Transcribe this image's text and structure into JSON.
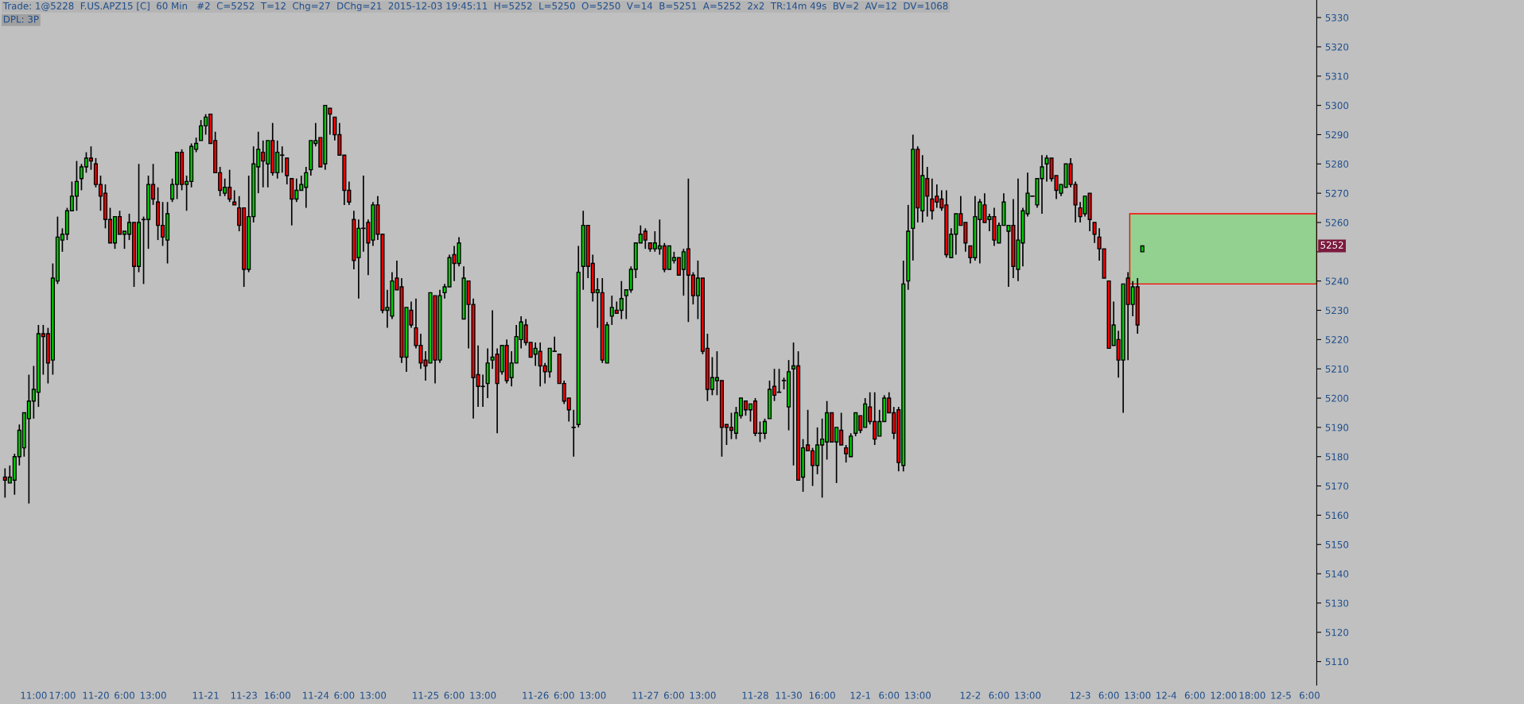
{
  "chart_data": {
    "type": "candlestick",
    "title": "Trade: 1@5228  F.US.APZ15 [C]  60 Min   #2  C=5252  T=12  Chg=27  DChg=21  2015-12-03 19:45:11  H=5252  L=5250  O=5250  V=14  B=5251  A=5252  2x2  TR:14m 49s  BV=2  AV=12  DV=1068",
    "subtitle": "DPL: 3P",
    "categories": [
      null,
      null,
      null,
      null,
      null,
      null,
      "11:00",
      null,
      null,
      null,
      null,
      null,
      "17:00",
      null,
      null,
      null,
      null,
      null,
      null,
      "11-20",
      null,
      null,
      null,
      null,
      null,
      "6:00",
      null,
      null,
      null,
      null,
      null,
      "13:00",
      null,
      null,
      null,
      null,
      null,
      null,
      null,
      null,
      null,
      null,
      "11-21",
      null,
      null,
      null,
      null,
      null,
      null,
      null,
      "11-23",
      null,
      null,
      null,
      null,
      null,
      null,
      "16:00",
      null,
      null,
      null,
      null,
      null,
      null,
      null,
      "11-24",
      null,
      null,
      null,
      null,
      null,
      "6:00",
      null,
      null,
      null,
      null,
      null,
      "13:00",
      null,
      null,
      null,
      null,
      null,
      null,
      null,
      null,
      null,
      null,
      "11-25",
      null,
      null,
      null,
      null,
      null,
      "6:00",
      null,
      null,
      null,
      null,
      null,
      "13:00",
      null,
      null,
      null,
      null,
      null,
      null,
      null,
      null,
      null,
      null,
      "11-26",
      null,
      null,
      null,
      null,
      null,
      "6:00",
      null,
      null,
      null,
      null,
      null,
      "13:00",
      null,
      null,
      null,
      null,
      null,
      null,
      null,
      null,
      null,
      null,
      "11-27",
      null,
      null,
      null,
      null,
      null,
      "6:00",
      null,
      null,
      null,
      null,
      null,
      "13:00",
      null,
      null,
      null,
      null,
      null,
      null,
      null,
      null,
      null,
      null,
      "11-28",
      null,
      null,
      null,
      null,
      null,
      null,
      "11-30",
      null,
      null,
      null,
      null,
      null,
      null,
      "16:00",
      null,
      null,
      null,
      null,
      null,
      null,
      null,
      "12-1",
      null,
      null,
      null,
      null,
      null,
      "6:00",
      null,
      null,
      null,
      null,
      null,
      "13:00",
      null,
      null,
      null,
      null,
      null,
      null,
      null,
      null,
      null,
      null,
      "12-2",
      null,
      null,
      null,
      null,
      null,
      "6:00",
      null,
      null,
      null,
      null,
      null,
      "13:00",
      null,
      null,
      null,
      null,
      null,
      null,
      null,
      null,
      null,
      null,
      "12-3",
      null,
      null,
      null,
      null,
      null,
      "6:00",
      null,
      null,
      null,
      null,
      null,
      "13:00",
      null,
      null,
      null,
      null,
      null,
      "12-4",
      null,
      null,
      null,
      null,
      null,
      "6:00",
      null,
      null,
      null,
      null,
      null,
      "12:00",
      null,
      null,
      null,
      null,
      null,
      "18:00",
      null,
      null,
      null,
      null,
      null,
      "12-5",
      null,
      null,
      null,
      null,
      null,
      "6:00",
      null
    ],
    "ohlc": [
      [
        5173,
        5176,
        5166,
        5172
      ],
      [
        5171,
        5177,
        5171,
        5173
      ],
      [
        5172,
        5181,
        5167,
        5180
      ],
      [
        5180,
        5191,
        5177,
        5189
      ],
      [
        5183,
        5195,
        5180,
        5195
      ],
      [
        5193,
        5208,
        5164,
        5199
      ],
      [
        5199,
        5211,
        5193,
        5203
      ],
      [
        5202,
        5225,
        5197,
        5222
      ],
      [
        5222,
        5225,
        5208,
        5221
      ],
      [
        5222,
        5224,
        5205,
        5212
      ],
      [
        5213,
        5246,
        5208,
        5241
      ],
      [
        5240,
        5262,
        5239,
        5255
      ],
      [
        5254,
        5258,
        5250,
        5256
      ],
      [
        5256,
        5265,
        5254,
        5264
      ],
      [
        5264,
        5274,
        5264,
        5269
      ],
      [
        5269,
        5281,
        5264,
        5274
      ],
      [
        5275,
        5280,
        5271,
        5279
      ],
      [
        5279,
        5284,
        5277,
        5282
      ],
      [
        5282,
        5286,
        5278,
        5281
      ],
      [
        5280,
        5282,
        5272,
        5273
      ],
      [
        5273,
        5276,
        5264,
        5269
      ],
      [
        5270,
        5273,
        5258,
        5261
      ],
      [
        5261,
        5265,
        5253,
        5253
      ],
      [
        5253,
        5262,
        5251,
        5262
      ],
      [
        5262,
        5264,
        5256,
        5256
      ],
      [
        5256,
        5257,
        5251,
        5257
      ],
      [
        5256,
        5263,
        5254,
        5260
      ],
      [
        5260,
        5260,
        5238,
        5245
      ],
      [
        5245,
        5280,
        5243,
        5260
      ],
      [
        5261,
        5262,
        5239,
        5261
      ],
      [
        5261,
        5276,
        5251,
        5273
      ],
      [
        5273,
        5280,
        5266,
        5268
      ],
      [
        5267,
        5272,
        5254,
        5259
      ],
      [
        5259,
        5267,
        5252,
        5255
      ],
      [
        5254,
        5267,
        5246,
        5263
      ],
      [
        5268,
        5275,
        5267,
        5273
      ],
      [
        5273,
        5284,
        5268,
        5284
      ],
      [
        5284,
        5285,
        5271,
        5273
      ],
      [
        5273,
        5276,
        5264,
        5274
      ],
      [
        5274,
        5287,
        5272,
        5286
      ],
      [
        5285,
        5289,
        5284,
        5287
      ],
      [
        5288,
        5295,
        5288,
        5293
      ],
      [
        5293,
        5297,
        5290,
        5296
      ],
      [
        5297,
        5297,
        5287,
        5287
      ],
      [
        5288,
        5291,
        5277,
        5277
      ],
      [
        5277,
        5279,
        5269,
        5271
      ],
      [
        5270,
        5275,
        5269,
        5272
      ],
      [
        5272,
        5278,
        5267,
        5268
      ],
      [
        5267,
        5271,
        5266,
        5266
      ],
      [
        5265,
        5269,
        5257,
        5259
      ],
      [
        5265,
        5265,
        5238,
        5244
      ],
      [
        5244,
        5276,
        5243,
        5262
      ],
      [
        5262,
        5286,
        5260,
        5280
      ],
      [
        5279,
        5291,
        5270,
        5285
      ],
      [
        5284,
        5288,
        5272,
        5281
      ],
      [
        5280,
        5288,
        5272,
        5288
      ],
      [
        5288,
        5294,
        5276,
        5277
      ],
      [
        5277,
        5288,
        5275,
        5284
      ],
      [
        5283,
        5286,
        5277,
        5283
      ],
      [
        5282,
        5282,
        5273,
        5276
      ],
      [
        5275,
        5275,
        5259,
        5268
      ],
      [
        5268,
        5275,
        5267,
        5271
      ],
      [
        5271,
        5276,
        5271,
        5273
      ],
      [
        5272,
        5279,
        5265,
        5277
      ],
      [
        5278,
        5288,
        5276,
        5288
      ],
      [
        5287,
        5294,
        5286,
        5288
      ],
      [
        5289,
        5289,
        5279,
        5279
      ],
      [
        5280,
        5300,
        5278,
        5300
      ],
      [
        5299,
        5299,
        5290,
        5297
      ],
      [
        5296,
        5296,
        5288,
        5290
      ],
      [
        5290,
        5294,
        5283,
        5283
      ],
      [
        5283,
        5283,
        5266,
        5271
      ],
      [
        5271,
        5274,
        5266,
        5267
      ],
      [
        5261,
        5264,
        5244,
        5247
      ],
      [
        5248,
        5261,
        5234,
        5258
      ],
      [
        5258,
        5276,
        5250,
        5258
      ],
      [
        5260,
        5261,
        5242,
        5253
      ],
      [
        5254,
        5267,
        5252,
        5266
      ],
      [
        5266,
        5269,
        5254,
        5256
      ],
      [
        5256,
        5256,
        5229,
        5230
      ],
      [
        5230,
        5237,
        5224,
        5231
      ],
      [
        5228,
        5243,
        5227,
        5240
      ],
      [
        5241,
        5247,
        5237,
        5237
      ],
      [
        5238,
        5241,
        5212,
        5214
      ],
      [
        5214,
        5231,
        5209,
        5231
      ],
      [
        5230,
        5233,
        5224,
        5225
      ],
      [
        5224,
        5234,
        5217,
        5218
      ],
      [
        5218,
        5222,
        5210,
        5212
      ],
      [
        5213,
        5216,
        5206,
        5211
      ],
      [
        5212,
        5236,
        5212,
        5236
      ],
      [
        5235,
        5235,
        5205,
        5213
      ],
      [
        5213,
        5237,
        5212,
        5235
      ],
      [
        5236,
        5239,
        5234,
        5238
      ],
      [
        5238,
        5249,
        5238,
        5248
      ],
      [
        5249,
        5252,
        5240,
        5246
      ],
      [
        5246,
        5255,
        5245,
        5253
      ],
      [
        5227,
        5245,
        5227,
        5241
      ],
      [
        5240,
        5240,
        5217,
        5232
      ],
      [
        5232,
        5234,
        5193,
        5207
      ],
      [
        5208,
        5218,
        5197,
        5204
      ],
      [
        5204,
        5208,
        5197,
        5204
      ],
      [
        5205,
        5217,
        5200,
        5212
      ],
      [
        5213,
        5230,
        5210,
        5214
      ],
      [
        5215,
        5217,
        5188,
        5205
      ],
      [
        5209,
        5218,
        5208,
        5218
      ],
      [
        5218,
        5220,
        5205,
        5206
      ],
      [
        5207,
        5216,
        5204,
        5212
      ],
      [
        5212,
        5225,
        5212,
        5221
      ],
      [
        5220,
        5228,
        5217,
        5226
      ],
      [
        5225,
        5227,
        5218,
        5219
      ],
      [
        5219,
        5219,
        5214,
        5214
      ],
      [
        5215,
        5219,
        5211,
        5217
      ],
      [
        5216,
        5219,
        5204,
        5211
      ],
      [
        5211,
        5212,
        5205,
        5209
      ],
      [
        5209,
        5217,
        5207,
        5217
      ],
      [
        5216,
        5221,
        5216,
        5216
      ],
      [
        5215,
        5215,
        5205,
        5205
      ],
      [
        5205,
        5206,
        5198,
        5199
      ],
      [
        5200,
        5200,
        5192,
        5196
      ],
      [
        5190,
        5196,
        5180,
        5190
      ],
      [
        5191,
        5252,
        5190,
        5243
      ],
      [
        5245,
        5264,
        5237,
        5259
      ],
      [
        5259,
        5259,
        5241,
        5245
      ],
      [
        5246,
        5249,
        5233,
        5236
      ],
      [
        5236,
        5241,
        5224,
        5237
      ],
      [
        5236,
        5241,
        5212,
        5213
      ],
      [
        5212,
        5226,
        5212,
        5225
      ],
      [
        5228,
        5235,
        5225,
        5231
      ],
      [
        5230,
        5233,
        5229,
        5229
      ],
      [
        5230,
        5240,
        5227,
        5234
      ],
      [
        5235,
        5237,
        5227,
        5237
      ],
      [
        5237,
        5245,
        5236,
        5244
      ],
      [
        5244,
        5253,
        5241,
        5253
      ],
      [
        5253,
        5259,
        5253,
        5256
      ],
      [
        5257,
        5258,
        5251,
        5254
      ],
      [
        5253,
        5253,
        5250,
        5251
      ],
      [
        5251,
        5257,
        5250,
        5253
      ],
      [
        5251,
        5261,
        5249,
        5252
      ],
      [
        5252,
        5253,
        5243,
        5244
      ],
      [
        5244,
        5252,
        5244,
        5252
      ],
      [
        5247,
        5250,
        5246,
        5248
      ],
      [
        5248,
        5248,
        5242,
        5242
      ],
      [
        5244,
        5251,
        5235,
        5250
      ],
      [
        5251,
        5275,
        5226,
        5242
      ],
      [
        5242,
        5243,
        5232,
        5235
      ],
      [
        5235,
        5247,
        5227,
        5241
      ],
      [
        5241,
        5241,
        5215,
        5216
      ],
      [
        5217,
        5222,
        5199,
        5203
      ],
      [
        5203,
        5214,
        5201,
        5207
      ],
      [
        5206,
        5216,
        5201,
        5207
      ],
      [
        5206,
        5206,
        5180,
        5190
      ],
      [
        5191,
        5191,
        5184,
        5190
      ],
      [
        5190,
        5195,
        5186,
        5189
      ],
      [
        5188,
        5197,
        5186,
        5195
      ],
      [
        5194,
        5200,
        5193,
        5200
      ],
      [
        5199,
        5199,
        5194,
        5196
      ],
      [
        5196,
        5198,
        5192,
        5198
      ],
      [
        5199,
        5200,
        5187,
        5188
      ],
      [
        5188,
        5192,
        5185,
        5188
      ],
      [
        5188,
        5193,
        5186,
        5192
      ],
      [
        5193,
        5206,
        5193,
        5203
      ],
      [
        5204,
        5210,
        5199,
        5201
      ],
      [
        5202,
        5210,
        5202,
        5202
      ],
      [
        5206,
        5207,
        5203,
        5206
      ],
      [
        5197,
        5213,
        5189,
        5209
      ],
      [
        5210,
        5219,
        5177,
        5211
      ],
      [
        5211,
        5216,
        5172,
        5172
      ],
      [
        5173,
        5186,
        5168,
        5183
      ],
      [
        5184,
        5196,
        5182,
        5182
      ],
      [
        5182,
        5183,
        5170,
        5177
      ],
      [
        5177,
        5190,
        5174,
        5184
      ],
      [
        5184,
        5193,
        5166,
        5186
      ],
      [
        5185,
        5199,
        5179,
        5195
      ],
      [
        5195,
        5195,
        5185,
        5185
      ],
      [
        5185,
        5190,
        5171,
        5190
      ],
      [
        5189,
        5195,
        5184,
        5184
      ],
      [
        5183,
        5184,
        5178,
        5181
      ],
      [
        5180,
        5188,
        5180,
        5187
      ],
      [
        5188,
        5195,
        5187,
        5195
      ],
      [
        5194,
        5194,
        5188,
        5189
      ],
      [
        5190,
        5200,
        5190,
        5198
      ],
      [
        5197,
        5202,
        5191,
        5192
      ],
      [
        5192,
        5202,
        5184,
        5186
      ],
      [
        5187,
        5196,
        5187,
        5192
      ],
      [
        5192,
        5201,
        5192,
        5200
      ],
      [
        5200,
        5202,
        5195,
        5195
      ],
      [
        5195,
        5197,
        5186,
        5188
      ],
      [
        5196,
        5197,
        5175,
        5178
      ],
      [
        5177,
        5247,
        5175,
        5239
      ],
      [
        5240,
        5266,
        5237,
        5257
      ],
      [
        5258,
        5290,
        5247,
        5285
      ],
      [
        5285,
        5286,
        5260,
        5265
      ],
      [
        5264,
        5283,
        5260,
        5276
      ],
      [
        5275,
        5279,
        5262,
        5269
      ],
      [
        5268,
        5275,
        5261,
        5264
      ],
      [
        5269,
        5273,
        5265,
        5267
      ],
      [
        5268,
        5271,
        5264,
        5265
      ],
      [
        5266,
        5271,
        5248,
        5249
      ],
      [
        5248,
        5258,
        5248,
        5256
      ],
      [
        5256,
        5263,
        5249,
        5263
      ],
      [
        5263,
        5269,
        5259,
        5259
      ],
      [
        5260,
        5260,
        5250,
        5253
      ],
      [
        5252,
        5252,
        5246,
        5248
      ],
      [
        5248,
        5269,
        5247,
        5262
      ],
      [
        5261,
        5268,
        5246,
        5267
      ],
      [
        5266,
        5270,
        5260,
        5260
      ],
      [
        5261,
        5263,
        5257,
        5262
      ],
      [
        5262,
        5265,
        5252,
        5254
      ],
      [
        5253,
        5260,
        5253,
        5259
      ],
      [
        5259,
        5270,
        5259,
        5267
      ],
      [
        5257,
        5259,
        5238,
        5259
      ],
      [
        5259,
        5268,
        5241,
        5245
      ],
      [
        5244,
        5275,
        5240,
        5254
      ],
      [
        5253,
        5265,
        5245,
        5264
      ],
      [
        5263,
        5277,
        5262,
        5270
      ],
      [
        5269,
        5269,
        5269,
        5269
      ],
      [
        5266,
        5275,
        5265,
        5275
      ],
      [
        5275,
        5283,
        5263,
        5279
      ],
      [
        5280,
        5283,
        5274,
        5282
      ],
      [
        5282,
        5282,
        5274,
        5275
      ],
      [
        5276,
        5276,
        5268,
        5271
      ],
      [
        5270,
        5273,
        5269,
        5273
      ],
      [
        5272,
        5280,
        5272,
        5280
      ],
      [
        5280,
        5282,
        5272,
        5273
      ],
      [
        5273,
        5274,
        5260,
        5266
      ],
      [
        5265,
        5267,
        5260,
        5262
      ],
      [
        5263,
        5269,
        5262,
        5269
      ],
      [
        5270,
        5270,
        5257,
        5261
      ],
      [
        5260,
        5260,
        5253,
        5256
      ],
      [
        5255,
        5258,
        5247,
        5251
      ],
      [
        5251,
        5251,
        5241,
        5241
      ],
      [
        5240,
        5240,
        5217,
        5217
      ],
      [
        5218,
        5233,
        5218,
        5225
      ],
      [
        5220,
        5223,
        5207,
        5213
      ],
      [
        5213,
        5239,
        5195,
        5239
      ],
      [
        5241,
        5243,
        5213,
        5232
      ],
      [
        5232,
        5240,
        5228,
        5238
      ],
      [
        5238,
        5241,
        5222,
        5225
      ],
      [
        5250,
        5252,
        5250,
        5252
      ],
      null,
      null,
      null,
      null,
      null,
      null,
      null,
      null,
      null,
      null,
      null,
      null,
      null,
      null,
      null,
      null,
      null,
      null,
      null,
      null,
      null,
      null,
      null,
      null,
      null,
      null,
      null,
      null,
      null,
      null,
      null,
      null,
      null,
      null,
      null,
      null
    ],
    "colors": [
      "#ff0000",
      "#00d200",
      "#00d200",
      "#00d200",
      "#00d200",
      "#00d200",
      "#00d200",
      "#00d200",
      "#ff0000",
      "#ff0000",
      "#00d200",
      "#00d200",
      "#00d200",
      "#00d200",
      "#00d200",
      "#00d200",
      "#00d200",
      "#00d200",
      "#ff0000",
      "#ff0000",
      "#ff0000",
      "#ff0000",
      "#ff0000",
      "#00d200",
      "#ff0000",
      "#00d200",
      "#00d200",
      "#ff0000",
      "#00d200",
      "#000000",
      "#00d200",
      "#ff0000",
      "#ff0000",
      "#ff0000",
      "#00d200",
      "#00d200",
      "#00d200",
      "#ff0000",
      "#00d200",
      "#00d200",
      "#00d200",
      "#00d200",
      "#00d200",
      "#ff0000",
      "#ff0000",
      "#ff0000",
      "#00d200",
      "#ff0000",
      "#ff0000",
      "#ff0000",
      "#ff0000",
      "#00d200",
      "#00d200",
      "#00d200",
      "#ff0000",
      "#00d200",
      "#ff0000",
      "#00d200",
      "#000000",
      "#ff0000",
      "#ff0000",
      "#00d200",
      "#00d200",
      "#00d200",
      "#00d200",
      "#00d200",
      "#ff0000",
      "#00d200",
      "#ff0000",
      "#ff0000",
      "#ff0000",
      "#ff0000",
      "#ff0000",
      "#ff0000",
      "#00d200",
      "#000000",
      "#ff0000",
      "#00d200",
      "#ff0000",
      "#ff0000",
      "#00d200",
      "#00d200",
      "#ff0000",
      "#ff0000",
      "#00d200",
      "#ff0000",
      "#ff0000",
      "#ff0000",
      "#ff0000",
      "#00d200",
      "#ff0000",
      "#00d200",
      "#00d200",
      "#00d200",
      "#ff0000",
      "#00d200",
      "#00d200",
      "#ff0000",
      "#ff0000",
      "#ff0000",
      "#000000",
      "#00d200",
      "#00d200",
      "#ff0000",
      "#00d200",
      "#ff0000",
      "#00d200",
      "#00d200",
      "#00d200",
      "#ff0000",
      "#ff0000",
      "#00d200",
      "#ff0000",
      "#ff0000",
      "#00d200",
      "#000000",
      "#ff0000",
      "#ff0000",
      "#ff0000",
      "#000000",
      "#00d200",
      "#00d200",
      "#ff0000",
      "#ff0000",
      "#00d200",
      "#ff0000",
      "#00d200",
      "#00d200",
      "#ff0000",
      "#00d200",
      "#00d200",
      "#00d200",
      "#00d200",
      "#00d200",
      "#ff0000",
      "#ff0000",
      "#00d200",
      "#00d200",
      "#ff0000",
      "#00d200",
      "#00d200",
      "#ff0000",
      "#00d200",
      "#ff0000",
      "#ff0000",
      "#00d200",
      "#ff0000",
      "#ff0000",
      "#00d200",
      "#00d200",
      "#ff0000",
      "#ff0000",
      "#ff0000",
      "#00d200",
      "#00d200",
      "#ff0000",
      "#00d200",
      "#ff0000",
      "#000000",
      "#00d200",
      "#00d200",
      "#ff0000",
      "#000000",
      "#000000",
      "#00d200",
      "#00d200",
      "#ff0000",
      "#00d200",
      "#ff0000",
      "#ff0000",
      "#00d200",
      "#00d200",
      "#00d200",
      "#ff0000",
      "#00d200",
      "#ff0000",
      "#ff0000",
      "#00d200",
      "#00d200",
      "#ff0000",
      "#00d200",
      "#ff0000",
      "#ff0000",
      "#00d200",
      "#00d200",
      "#ff0000",
      "#ff0000",
      "#ff0000",
      "#00d200",
      "#00d200",
      "#00d200",
      "#ff0000",
      "#00d200",
      "#ff0000",
      "#ff0000",
      "#ff0000",
      "#ff0000",
      "#ff0000",
      "#00d200",
      "#00d200",
      "#ff0000",
      "#ff0000",
      "#ff0000",
      "#00d200",
      "#00d200",
      "#ff0000",
      "#00d200",
      "#ff0000",
      "#00d200",
      "#00d200",
      "#00d200",
      "#ff0000",
      "#00d200",
      "#00d200",
      "#00d200",
      "#000000",
      "#00d200",
      "#00d200",
      "#00d200",
      "#ff0000",
      "#ff0000",
      "#00d200",
      "#00d200",
      "#ff0000",
      "#ff0000",
      "#ff0000",
      "#00d200",
      "#ff0000",
      "#ff0000",
      "#ff0000",
      "#ff0000",
      "#ff0000",
      "#00d200",
      "#ff0000",
      "#00d200",
      "#ff0000",
      "#00d200",
      "#ff0000",
      "#00d200",
      null,
      null,
      null,
      null,
      null,
      null,
      null,
      null,
      null,
      null,
      null,
      null,
      null,
      null,
      null,
      null,
      null,
      null,
      null,
      null,
      null,
      null,
      null,
      null,
      null,
      null,
      null,
      null,
      null,
      null,
      null,
      null,
      null,
      null,
      null,
      null
    ],
    "ylim": [
      5102,
      5336
    ],
    "yticks": [
      5110,
      5120,
      5130,
      5140,
      5150,
      5160,
      5170,
      5180,
      5190,
      5200,
      5210,
      5220,
      5230,
      5240,
      {
        "value": 5250,
        "label": null
      },
      5260,
      5270,
      5280,
      5290,
      5300,
      5310,
      5320,
      5330
    ],
    "bands": [
      {
        "axis": "y",
        "from": 5239,
        "to": 5263,
        "color": "#92d18f"
      }
    ],
    "annotations": [
      {
        "text": "5252",
        "y": 5252
      }
    ],
    "grid": false,
    "legend": false
  }
}
